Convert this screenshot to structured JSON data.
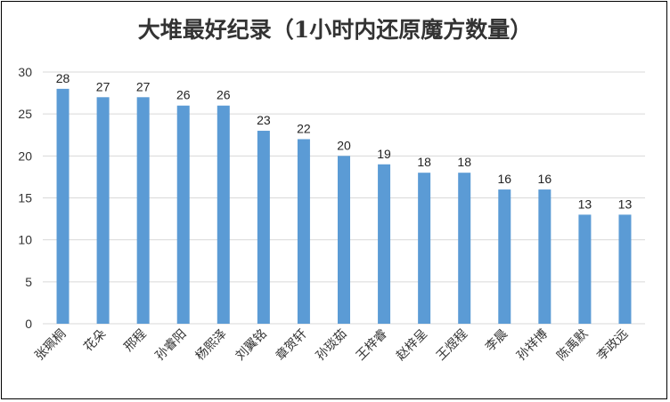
{
  "chart_data": {
    "type": "bar",
    "title": "大堆最好纪录（1小时内还原魔方数量）",
    "xlabel": "",
    "ylabel": "",
    "ylim": [
      0,
      30
    ],
    "yticks": [
      0,
      5,
      10,
      15,
      20,
      25,
      30
    ],
    "grid": true,
    "legend": "none",
    "bar_color": "#5B9BD5",
    "grid_color": "#D9D9D9",
    "categories": [
      "张珮桐",
      "花朵",
      "邢程",
      "孙睿阳",
      "杨熙泽",
      "刘翼铭",
      "章贺轩",
      "孙琰茹",
      "王梓睿",
      "赵梓呈",
      "王煜程",
      "李晨",
      "孙祥博",
      "陈禹默",
      "李政远"
    ],
    "values": [
      28,
      27,
      27,
      26,
      26,
      23,
      22,
      20,
      19,
      18,
      18,
      16,
      16,
      13,
      13
    ]
  }
}
